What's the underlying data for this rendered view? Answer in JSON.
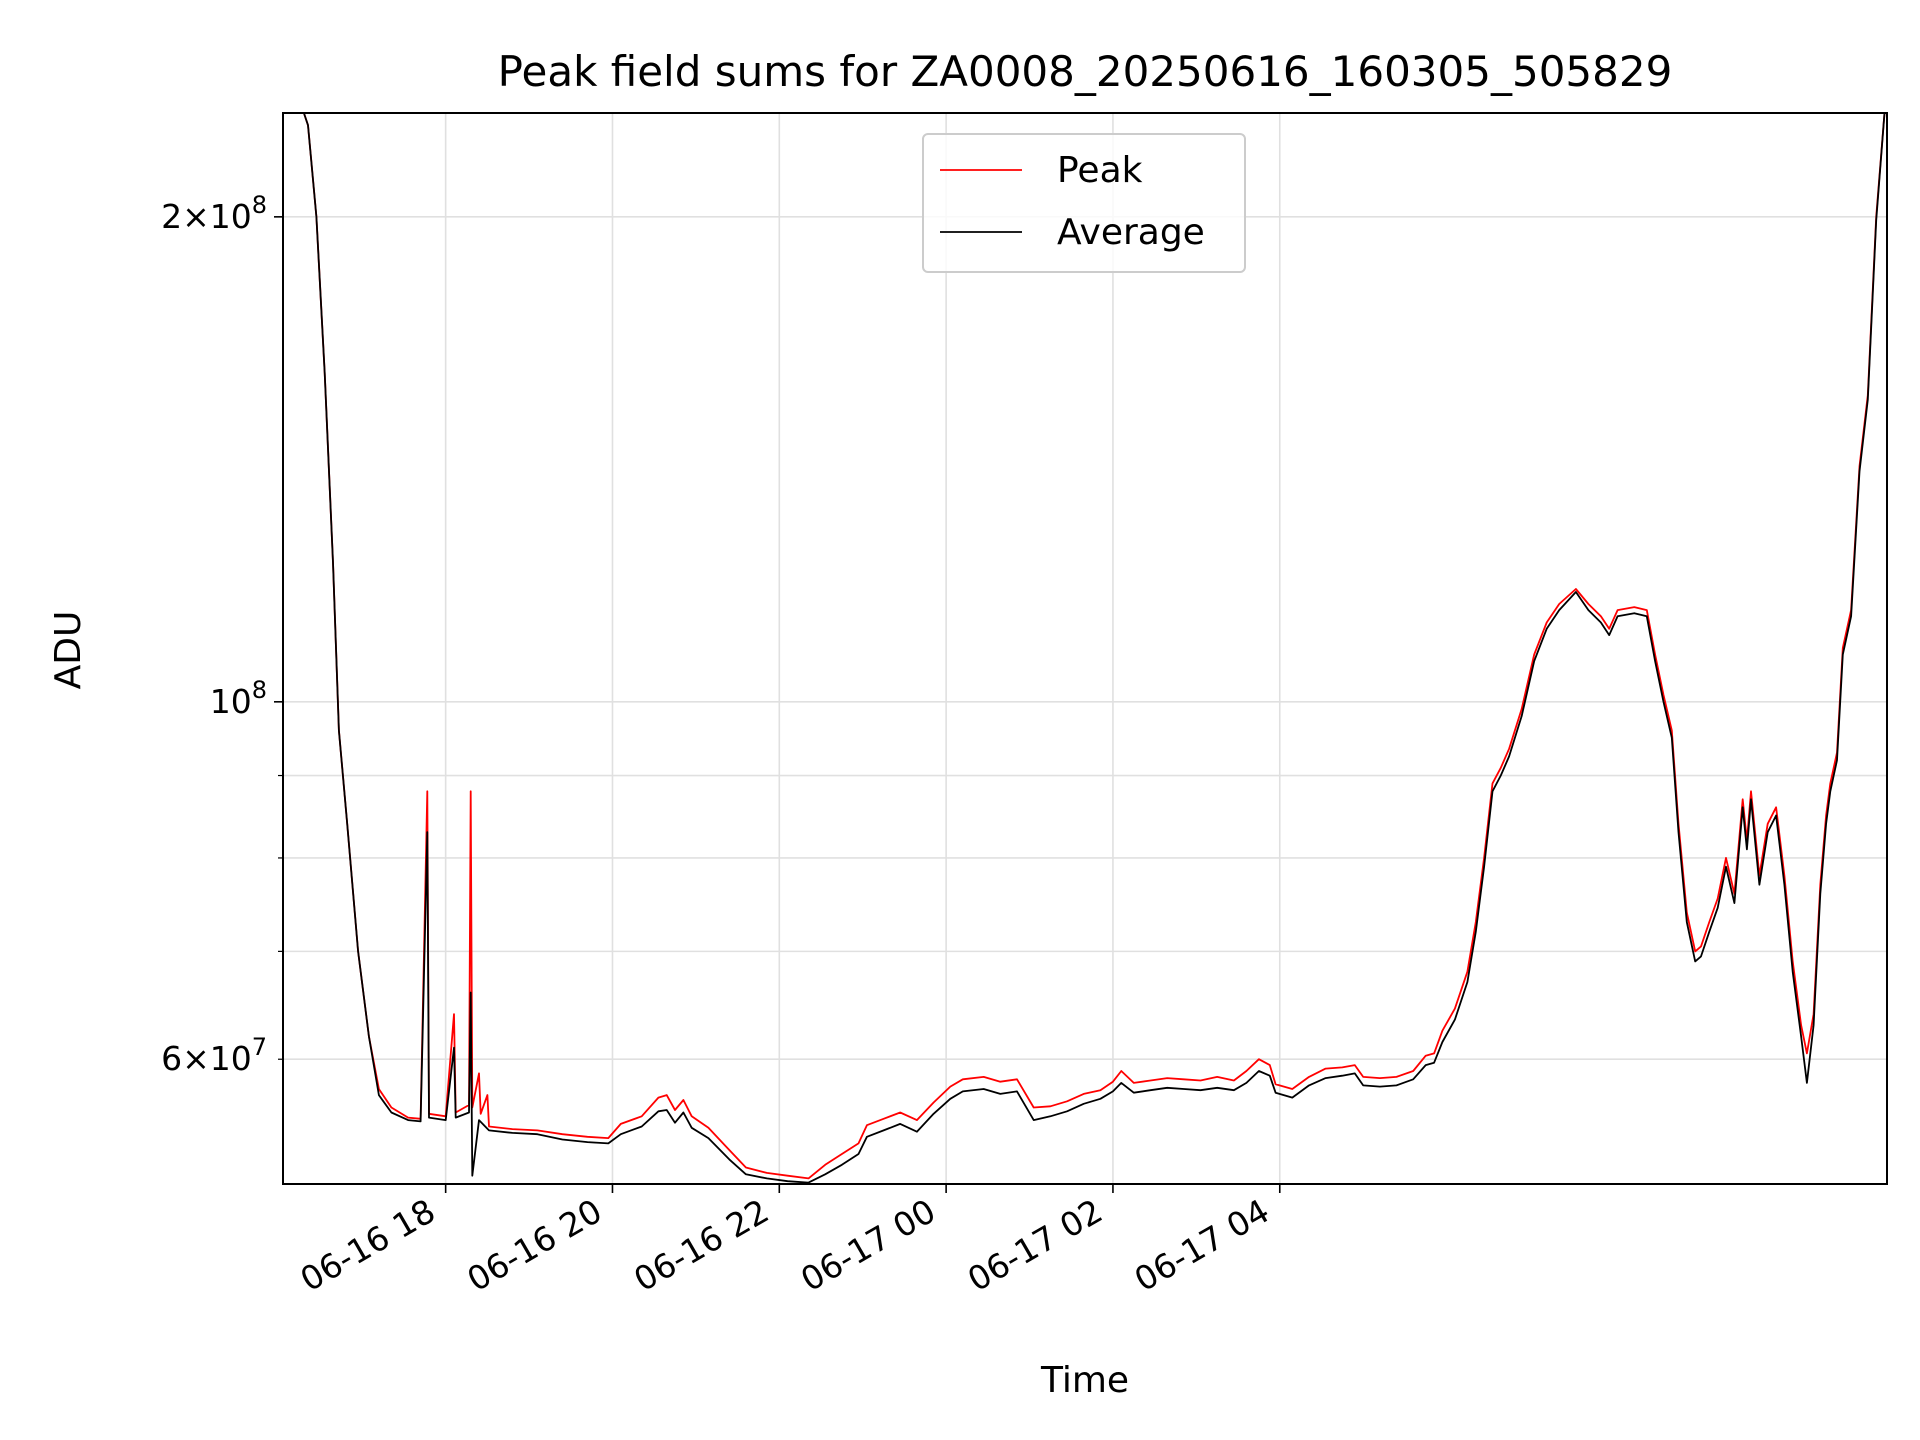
{
  "chart_data": {
    "type": "line",
    "title": "Peak field sums for ZA0008_20250616_160305_505829",
    "xlabel": "Time",
    "ylabel": "ADU",
    "yscale": "log",
    "ylim": [
      50200000,
      232000000
    ],
    "xlim": [
      "06-16 16:03",
      "06-17 05:14"
    ],
    "grid": true,
    "legend_position": "top-center",
    "x_ticks": [
      "06-16 18",
      "06-16 20",
      "06-16 22",
      "06-17 00",
      "06-17 02",
      "06-17 04"
    ],
    "y_tick_labels": {
      "2e8": {
        "mant": "2",
        "times": "×",
        "base": "10",
        "exp": "8"
      },
      "1e8": {
        "base": "10",
        "exp": "8"
      },
      "6e7": {
        "mant": "6",
        "times": "×",
        "base": "10",
        "exp": "7"
      }
    },
    "colors": {
      "Peak": "#ff0000",
      "Average": "#000000",
      "grid": "#e0e0e0"
    },
    "x_unit": "hours since 06-16 16:00",
    "series": [
      {
        "name": "Peak",
        "points": [
          [
            16.05,
            232000000
          ],
          [
            16.3,
            232000000
          ],
          [
            16.35,
            228000000
          ],
          [
            16.45,
            200000000
          ],
          [
            16.55,
            160000000
          ],
          [
            16.65,
            122000000
          ],
          [
            16.72,
            96000000
          ],
          [
            16.82,
            84000000
          ],
          [
            16.95,
            70000000
          ],
          [
            17.08,
            62000000
          ],
          [
            17.2,
            57500000
          ],
          [
            17.35,
            56000000
          ],
          [
            17.55,
            55200000
          ],
          [
            17.7,
            55100000
          ],
          [
            17.78,
            88000000
          ],
          [
            17.8,
            55500000
          ],
          [
            18.0,
            55300000
          ],
          [
            18.1,
            64000000
          ],
          [
            18.12,
            55600000
          ],
          [
            18.28,
            56200000
          ],
          [
            18.3,
            88000000
          ],
          [
            18.32,
            56000000
          ],
          [
            18.4,
            58800000
          ],
          [
            18.42,
            55500000
          ],
          [
            18.5,
            57000000
          ],
          [
            18.52,
            54500000
          ],
          [
            18.8,
            54300000
          ],
          [
            19.1,
            54200000
          ],
          [
            19.4,
            53900000
          ],
          [
            19.7,
            53700000
          ],
          [
            19.95,
            53600000
          ],
          [
            20.1,
            54700000
          ],
          [
            20.35,
            55300000
          ],
          [
            20.55,
            56800000
          ],
          [
            20.65,
            57000000
          ],
          [
            20.75,
            55800000
          ],
          [
            20.85,
            56600000
          ],
          [
            20.95,
            55300000
          ],
          [
            21.15,
            54400000
          ],
          [
            21.4,
            52700000
          ],
          [
            21.6,
            51400000
          ],
          [
            21.85,
            51000000
          ],
          [
            22.1,
            50800000
          ],
          [
            22.35,
            50600000
          ],
          [
            22.55,
            51600000
          ],
          [
            22.75,
            52400000
          ],
          [
            22.95,
            53200000
          ],
          [
            23.05,
            54600000
          ],
          [
            23.25,
            55100000
          ],
          [
            23.45,
            55600000
          ],
          [
            23.65,
            55000000
          ],
          [
            23.85,
            56400000
          ],
          [
            24.05,
            57700000
          ],
          [
            24.2,
            58300000
          ],
          [
            24.45,
            58500000
          ],
          [
            24.65,
            58100000
          ],
          [
            24.85,
            58300000
          ],
          [
            25.05,
            56000000
          ],
          [
            25.25,
            56100000
          ],
          [
            25.45,
            56500000
          ],
          [
            25.65,
            57100000
          ],
          [
            25.85,
            57400000
          ],
          [
            26.0,
            58100000
          ],
          [
            26.1,
            59000000
          ],
          [
            26.25,
            58000000
          ],
          [
            26.45,
            58200000
          ],
          [
            26.65,
            58400000
          ],
          [
            26.85,
            58300000
          ],
          [
            27.05,
            58200000
          ],
          [
            27.25,
            58500000
          ],
          [
            27.45,
            58200000
          ],
          [
            27.6,
            59000000
          ],
          [
            27.75,
            60000000
          ],
          [
            27.88,
            59500000
          ],
          [
            27.95,
            57900000
          ],
          [
            28.15,
            57500000
          ],
          [
            28.35,
            58500000
          ],
          [
            28.55,
            59200000
          ],
          [
            28.75,
            59300000
          ],
          [
            28.9,
            59500000
          ],
          [
            29.0,
            58500000
          ],
          [
            29.2,
            58400000
          ],
          [
            29.4,
            58500000
          ],
          [
            29.6,
            59000000
          ],
          [
            29.75,
            60300000
          ],
          [
            29.85,
            60500000
          ],
          [
            29.95,
            62500000
          ],
          [
            30.1,
            64500000
          ],
          [
            30.25,
            68000000
          ],
          [
            30.35,
            73000000
          ],
          [
            30.45,
            80000000
          ],
          [
            30.55,
            89000000
          ],
          [
            30.65,
            91000000
          ],
          [
            30.75,
            93500000
          ],
          [
            30.9,
            99000000
          ],
          [
            31.05,
            107000000
          ],
          [
            31.2,
            112000000
          ],
          [
            31.35,
            115000000
          ],
          [
            31.55,
            117500000
          ],
          [
            31.7,
            115000000
          ],
          [
            31.85,
            113000000
          ],
          [
            31.95,
            111000000
          ],
          [
            32.05,
            114000000
          ],
          [
            32.25,
            114500000
          ],
          [
            32.4,
            114000000
          ],
          [
            32.5,
            107000000
          ],
          [
            32.6,
            101000000
          ],
          [
            32.7,
            96000000
          ],
          [
            32.78,
            84000000
          ],
          [
            32.88,
            74000000
          ],
          [
            32.98,
            70000000
          ],
          [
            33.05,
            70500000
          ],
          [
            33.15,
            73000000
          ],
          [
            33.25,
            75500000
          ],
          [
            33.35,
            80000000
          ],
          [
            33.45,
            76000000
          ],
          [
            33.55,
            87000000
          ],
          [
            33.6,
            82000000
          ],
          [
            33.65,
            88000000
          ],
          [
            33.75,
            78000000
          ],
          [
            33.85,
            84000000
          ],
          [
            33.95,
            86000000
          ],
          [
            34.05,
            78000000
          ],
          [
            34.15,
            69000000
          ],
          [
            34.25,
            63000000
          ],
          [
            34.32,
            60500000
          ],
          [
            34.4,
            64000000
          ],
          [
            34.48,
            77000000
          ],
          [
            34.55,
            85000000
          ],
          [
            34.6,
            89000000
          ],
          [
            34.68,
            93000000
          ],
          [
            34.75,
            108000000
          ],
          [
            34.85,
            114000000
          ],
          [
            34.95,
            140000000
          ],
          [
            35.05,
            155000000
          ],
          [
            35.15,
            200000000
          ],
          [
            35.25,
            232000000
          ],
          [
            35.28,
            232000000
          ]
        ]
      },
      {
        "name": "Average",
        "points": [
          [
            16.05,
            232000000
          ],
          [
            16.3,
            232000000
          ],
          [
            16.35,
            228000000
          ],
          [
            16.45,
            200000000
          ],
          [
            16.55,
            160000000
          ],
          [
            16.65,
            122000000
          ],
          [
            16.72,
            96000000
          ],
          [
            16.82,
            84000000
          ],
          [
            16.95,
            70000000
          ],
          [
            17.08,
            62000000
          ],
          [
            17.2,
            57000000
          ],
          [
            17.35,
            55600000
          ],
          [
            17.55,
            55000000
          ],
          [
            17.7,
            54900000
          ],
          [
            17.78,
            83000000
          ],
          [
            17.8,
            55200000
          ],
          [
            18.0,
            55000000
          ],
          [
            18.1,
            61000000
          ],
          [
            18.12,
            55200000
          ],
          [
            18.28,
            55600000
          ],
          [
            18.3,
            66000000
          ],
          [
            18.32,
            50800000
          ],
          [
            18.4,
            55000000
          ],
          [
            18.52,
            54200000
          ],
          [
            18.8,
            54000000
          ],
          [
            19.1,
            53900000
          ],
          [
            19.4,
            53500000
          ],
          [
            19.7,
            53300000
          ],
          [
            19.95,
            53200000
          ],
          [
            20.1,
            53900000
          ],
          [
            20.35,
            54500000
          ],
          [
            20.55,
            55700000
          ],
          [
            20.65,
            55800000
          ],
          [
            20.75,
            54800000
          ],
          [
            20.85,
            55600000
          ],
          [
            20.95,
            54400000
          ],
          [
            21.15,
            53600000
          ],
          [
            21.4,
            52000000
          ],
          [
            21.6,
            50900000
          ],
          [
            21.85,
            50600000
          ],
          [
            22.1,
            50400000
          ],
          [
            22.35,
            50300000
          ],
          [
            22.55,
            50900000
          ],
          [
            22.75,
            51600000
          ],
          [
            22.95,
            52400000
          ],
          [
            23.05,
            53700000
          ],
          [
            23.25,
            54200000
          ],
          [
            23.45,
            54700000
          ],
          [
            23.65,
            54100000
          ],
          [
            23.85,
            55500000
          ],
          [
            24.05,
            56700000
          ],
          [
            24.2,
            57300000
          ],
          [
            24.45,
            57500000
          ],
          [
            24.65,
            57100000
          ],
          [
            24.85,
            57300000
          ],
          [
            25.05,
            55000000
          ],
          [
            25.25,
            55300000
          ],
          [
            25.45,
            55700000
          ],
          [
            25.65,
            56300000
          ],
          [
            25.85,
            56700000
          ],
          [
            26.0,
            57300000
          ],
          [
            26.1,
            58000000
          ],
          [
            26.25,
            57200000
          ],
          [
            26.45,
            57400000
          ],
          [
            26.65,
            57600000
          ],
          [
            26.85,
            57500000
          ],
          [
            27.05,
            57400000
          ],
          [
            27.25,
            57600000
          ],
          [
            27.45,
            57400000
          ],
          [
            27.6,
            58000000
          ],
          [
            27.75,
            59000000
          ],
          [
            27.88,
            58600000
          ],
          [
            27.95,
            57200000
          ],
          [
            28.15,
            56800000
          ],
          [
            28.35,
            57800000
          ],
          [
            28.55,
            58400000
          ],
          [
            28.75,
            58600000
          ],
          [
            28.9,
            58800000
          ],
          [
            29.0,
            57800000
          ],
          [
            29.2,
            57700000
          ],
          [
            29.4,
            57800000
          ],
          [
            29.6,
            58300000
          ],
          [
            29.75,
            59500000
          ],
          [
            29.85,
            59700000
          ],
          [
            29.95,
            61500000
          ],
          [
            30.1,
            63500000
          ],
          [
            30.25,
            67000000
          ],
          [
            30.35,
            72000000
          ],
          [
            30.45,
            79000000
          ],
          [
            30.55,
            88000000
          ],
          [
            30.65,
            90000000
          ],
          [
            30.75,
            92500000
          ],
          [
            30.9,
            98000000
          ],
          [
            31.05,
            106000000
          ],
          [
            31.2,
            111000000
          ],
          [
            31.35,
            114000000
          ],
          [
            31.55,
            117000000
          ],
          [
            31.7,
            114000000
          ],
          [
            31.85,
            112000000
          ],
          [
            31.95,
            110000000
          ],
          [
            32.05,
            113000000
          ],
          [
            32.25,
            113500000
          ],
          [
            32.4,
            113000000
          ],
          [
            32.5,
            106000000
          ],
          [
            32.6,
            100000000
          ],
          [
            32.7,
            95000000
          ],
          [
            32.78,
            83000000
          ],
          [
            32.88,
            73000000
          ],
          [
            32.98,
            69000000
          ],
          [
            33.05,
            69500000
          ],
          [
            33.15,
            72000000
          ],
          [
            33.25,
            74500000
          ],
          [
            33.35,
            79000000
          ],
          [
            33.45,
            75000000
          ],
          [
            33.55,
            86000000
          ],
          [
            33.6,
            81000000
          ],
          [
            33.65,
            87000000
          ],
          [
            33.75,
            77000000
          ],
          [
            33.85,
            83000000
          ],
          [
            33.95,
            85000000
          ],
          [
            34.05,
            77000000
          ],
          [
            34.15,
            68000000
          ],
          [
            34.25,
            62000000
          ],
          [
            34.32,
            58000000
          ],
          [
            34.4,
            63000000
          ],
          [
            34.48,
            76000000
          ],
          [
            34.55,
            84000000
          ],
          [
            34.6,
            88000000
          ],
          [
            34.68,
            92000000
          ],
          [
            34.75,
            107000000
          ],
          [
            34.85,
            113000000
          ],
          [
            34.95,
            139000000
          ],
          [
            35.05,
            154000000
          ],
          [
            35.15,
            199000000
          ],
          [
            35.25,
            232000000
          ],
          [
            35.28,
            232000000
          ]
        ]
      }
    ]
  }
}
